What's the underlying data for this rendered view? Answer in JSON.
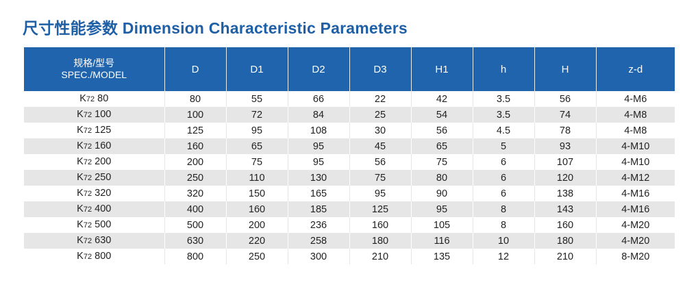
{
  "title": "尺寸性能参数 Dimension Characteristic Parameters",
  "headers": {
    "model_cn": "规格/型号",
    "model_en": "SPEC./MODEL",
    "cols": [
      "D",
      "D1",
      "D2",
      "D3",
      "H1",
      "h",
      "H",
      "z-d"
    ]
  },
  "rows": [
    {
      "model": "K72 80",
      "prefix": "K",
      "sub": "72",
      "num": "80",
      "values": [
        "80",
        "55",
        "66",
        "22",
        "42",
        "3.5",
        "56",
        "4-M6"
      ]
    },
    {
      "model": "K72 100",
      "prefix": "K",
      "sub": "72",
      "num": "100",
      "values": [
        "100",
        "72",
        "84",
        "25",
        "54",
        "3.5",
        "74",
        "4-M8"
      ]
    },
    {
      "model": "K72 125",
      "prefix": "K",
      "sub": "72",
      "num": "125",
      "values": [
        "125",
        "95",
        "108",
        "30",
        "56",
        "4.5",
        "78",
        "4-M8"
      ]
    },
    {
      "model": "K72 160",
      "prefix": "K",
      "sub": "72",
      "num": "160",
      "values": [
        "160",
        "65",
        "95",
        "45",
        "65",
        "5",
        "93",
        "4-M10"
      ]
    },
    {
      "model": "K72 200",
      "prefix": "K",
      "sub": "72",
      "num": "200",
      "values": [
        "200",
        "75",
        "95",
        "56",
        "75",
        "6",
        "107",
        "4-M10"
      ]
    },
    {
      "model": "K72 250",
      "prefix": "K",
      "sub": "72",
      "num": "250",
      "values": [
        "250",
        "110",
        "130",
        "75",
        "80",
        "6",
        "120",
        "4-M12"
      ]
    },
    {
      "model": "K72 320",
      "prefix": "K",
      "sub": "72",
      "num": "320",
      "values": [
        "320",
        "150",
        "165",
        "95",
        "90",
        "6",
        "138",
        "4-M16"
      ]
    },
    {
      "model": "K72 400",
      "prefix": "K",
      "sub": "72",
      "num": "400",
      "values": [
        "400",
        "160",
        "185",
        "125",
        "95",
        "8",
        "143",
        "4-M16"
      ]
    },
    {
      "model": "K72 500",
      "prefix": "K",
      "sub": "72",
      "num": "500",
      "values": [
        "500",
        "200",
        "236",
        "160",
        "105",
        "8",
        "160",
        "4-M20"
      ]
    },
    {
      "model": "K72 630",
      "prefix": "K",
      "sub": "72",
      "num": "630",
      "values": [
        "630",
        "220",
        "258",
        "180",
        "116",
        "10",
        "180",
        "4-M20"
      ]
    },
    {
      "model": "K72 800",
      "prefix": "K",
      "sub": "72",
      "num": "800",
      "values": [
        "800",
        "250",
        "300",
        "210",
        "135",
        "12",
        "210",
        "8-M20"
      ]
    }
  ],
  "colors": {
    "header_bg": "#1f64ad",
    "title": "#1f5fa5",
    "stripe": "#e6e6e6"
  }
}
